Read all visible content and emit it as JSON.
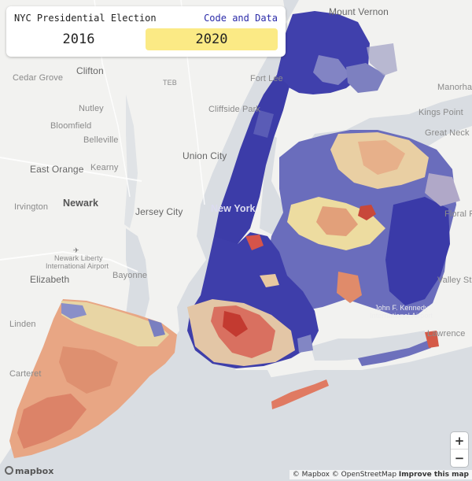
{
  "panel": {
    "title": "NYC Presidential Election",
    "link": "Code and Data",
    "years": [
      "2016",
      "2020"
    ],
    "selected_year": "2020",
    "selected_color": "#fbea85"
  },
  "places": {
    "mount_vernon": "Mount Vernon",
    "clifton": "Clifton",
    "cedar_grove": "Cedar Grove",
    "teb": "TEB",
    "fort_lee": "Fort Lee",
    "nutley": "Nutley",
    "cliffside_park": "Cliffside Park",
    "bloomfield": "Bloomfield",
    "belleville": "Belleville",
    "union_city": "Union City",
    "east_orange": "East Orange",
    "kearny": "Kearny",
    "irvington": "Irvington",
    "newark": "Newark",
    "jersey_city": "Jersey City",
    "new_york": "New York",
    "newark_airport_1": "Newark Liberty",
    "newark_airport_2": "International Airport",
    "elizabeth": "Elizabeth",
    "bayonne": "Bayonne",
    "linden": "Linden",
    "carteret": "Carteret",
    "manorhaven": "Manorhaven",
    "kings_point": "Kings Point",
    "great_neck": "Great Neck",
    "floral_park": "Floral Park",
    "valley_stream": "Valley Stream",
    "jfk_1": "John F. Kennedy",
    "jfk_2": "International Airport",
    "lawrence": "Lawrence"
  },
  "legend_colors": {
    "dem_strong": "#3a3aa8",
    "dem": "#8a8fc8",
    "neutral": "#eedfa3",
    "rep": "#e6a07a",
    "rep_strong": "#c8483a"
  },
  "controls": {
    "zoom_in": "+",
    "zoom_out": "−"
  },
  "logo": "mapbox",
  "attribution": {
    "mapbox": "© Mapbox",
    "osm": "© OpenStreetMap",
    "improve": "Improve this map"
  }
}
